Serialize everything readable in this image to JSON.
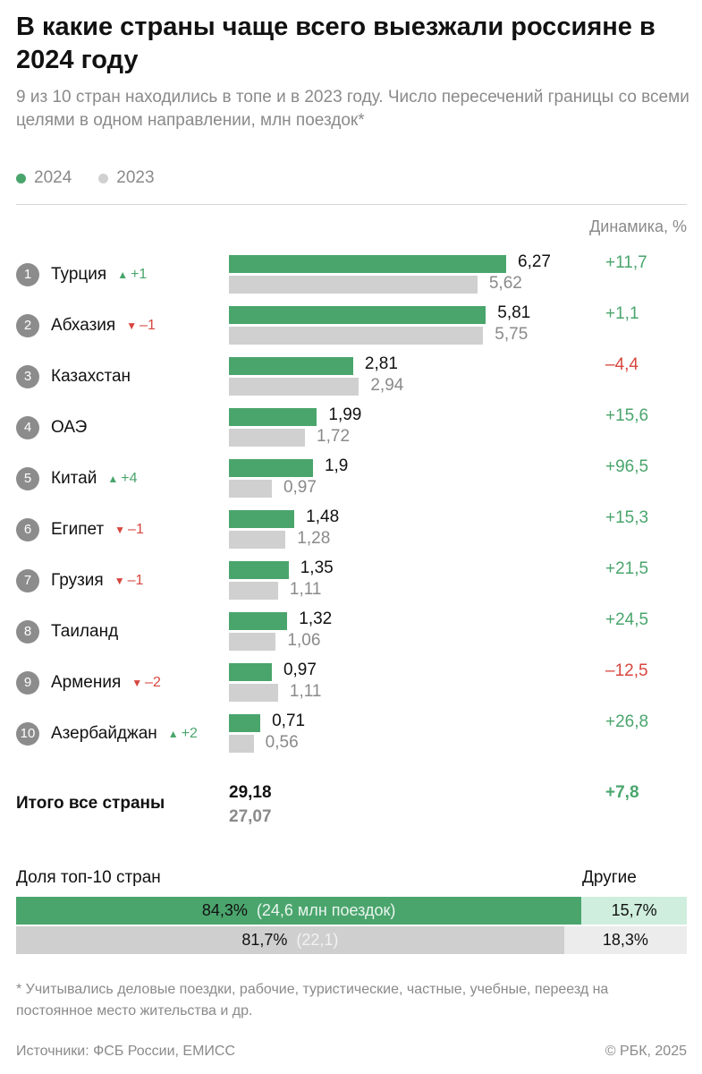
{
  "title": "В какие страны чаще всего выезжали россияне в 2024 году",
  "subtitle": "9 из 10 стран находились в топе и в 2023 году. Число пересечений границы со всеми целями в одном направлении, млн поездок*",
  "legend": [
    "2024",
    "2023"
  ],
  "colors": {
    "y2024": "#4aa56d",
    "y2023": "#d0d0d0",
    "positive": "#4aa56d",
    "negative": "#d7463f"
  },
  "dynamics_header": "Динамика, %",
  "chart_data": {
    "type": "bar",
    "orientation": "horizontal",
    "categories": [
      "Турция",
      "Абхазия",
      "Казахстан",
      "ОАЭ",
      "Китай",
      "Египет",
      "Грузия",
      "Таиланд",
      "Армения",
      "Азербайджан"
    ],
    "series": [
      {
        "name": "2024",
        "values": [
          6.27,
          5.81,
          2.81,
          1.99,
          1.9,
          1.48,
          1.35,
          1.32,
          0.97,
          0.71
        ]
      },
      {
        "name": "2023",
        "values": [
          5.62,
          5.75,
          2.94,
          1.72,
          0.97,
          1.28,
          1.11,
          1.06,
          1.11,
          0.56
        ]
      }
    ],
    "value_labels_2024": [
      "6,27",
      "5,81",
      "2,81",
      "1,99",
      "1,9",
      "1,48",
      "1,35",
      "1,32",
      "0,97",
      "0,71"
    ],
    "value_labels_2023": [
      "5,62",
      "5,75",
      "2,94",
      "1,72",
      "0,97",
      "1,28",
      "1,11",
      "1,06",
      "1,11",
      "0,56"
    ],
    "ranks": [
      "1",
      "2",
      "3",
      "4",
      "5",
      "6",
      "7",
      "8",
      "9",
      "10"
    ],
    "rank_changes": [
      {
        "dir": "up",
        "text": "+1"
      },
      {
        "dir": "down",
        "text": "–1"
      },
      null,
      null,
      {
        "dir": "up",
        "text": "+4"
      },
      {
        "dir": "down",
        "text": "–1"
      },
      {
        "dir": "down",
        "text": "–1"
      },
      null,
      {
        "dir": "down",
        "text": "–2"
      },
      {
        "dir": "up",
        "text": "+2"
      }
    ],
    "dynamics": [
      "+11,7",
      "+1,1",
      "–4,4",
      "+15,6",
      "+96,5",
      "+15,3",
      "+21,5",
      "+24,5",
      "–12,5",
      "+26,8"
    ],
    "xlim": [
      0,
      6.27
    ]
  },
  "total": {
    "label": "Итого все страны",
    "v2024": "29,18",
    "v2023": "27,07",
    "dynamics": "+7,8"
  },
  "share": {
    "label": "Доля топ-10 стран",
    "others_label": "Другие",
    "row2024": {
      "top_pct": 84.3,
      "top_text": "84,3%",
      "top_note": "(24,6 млн поездок)",
      "other_text": "15,7%"
    },
    "row2023": {
      "top_pct": 81.7,
      "top_text": "81,7%",
      "top_note": "(22,1)",
      "other_text": "18,3%"
    }
  },
  "footnote": "* Учитывались деловые поездки, рабочие, туристические, частные, учебные, переезд на постоянное место жительства и др.",
  "source": "Источники: ФСБ России, ЕМИСС",
  "copyright": "© РБК, 2025"
}
